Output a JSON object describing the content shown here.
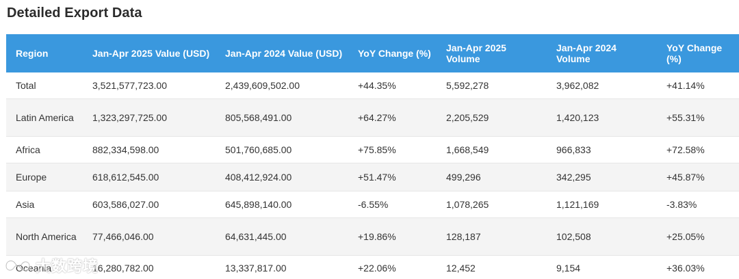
{
  "title": "Detailed Export Data",
  "headers": {
    "region": "Region",
    "value_2025": "Jan-Apr 2025 Value (USD)",
    "value_2024": "Jan-Apr 2024 Value (USD)",
    "yoy_value": "YoY Change (%)",
    "volume_2025": "Jan-Apr 2025 Volume",
    "volume_2024": "Jan-Apr 2024 Volume",
    "yoy_volume": "YoY Change (%)"
  },
  "rows": [
    {
      "region": "Total",
      "value_2025": "3,521,577,723.00",
      "value_2024": "2,439,609,502.00",
      "yoy_value": "+44.35%",
      "volume_2025": "5,592,278",
      "volume_2024": "3,962,082",
      "yoy_volume": "+41.14%"
    },
    {
      "region": "Latin America",
      "value_2025": "1,323,297,725.00",
      "value_2024": "805,568,491.00",
      "yoy_value": "+64.27%",
      "volume_2025": "2,205,529",
      "volume_2024": "1,420,123",
      "yoy_volume": "+55.31%"
    },
    {
      "region": "Africa",
      "value_2025": "882,334,598.00",
      "value_2024": "501,760,685.00",
      "yoy_value": "+75.85%",
      "volume_2025": "1,668,549",
      "volume_2024": "966,833",
      "yoy_volume": "+72.58%"
    },
    {
      "region": "Europe",
      "value_2025": "618,612,545.00",
      "value_2024": "408,412,924.00",
      "yoy_value": "+51.47%",
      "volume_2025": "499,296",
      "volume_2024": "342,295",
      "yoy_volume": "+45.87%"
    },
    {
      "region": "Asia",
      "value_2025": "603,586,027.00",
      "value_2024": "645,898,140.00",
      "yoy_value": "-6.55%",
      "volume_2025": "1,078,265",
      "volume_2024": "1,121,169",
      "yoy_volume": "-3.83%"
    },
    {
      "region": "North America",
      "value_2025": "77,466,046.00",
      "value_2024": "64,631,445.00",
      "yoy_value": "+19.86%",
      "volume_2025": "128,187",
      "volume_2024": "102,508",
      "yoy_volume": "+25.05%"
    },
    {
      "region": "Oceania",
      "value_2025": "16,280,782.00",
      "value_2024": "13,337,817.00",
      "yoy_value": "+22.06%",
      "volume_2025": "12,452",
      "volume_2024": "9,154",
      "yoy_volume": "+36.03%"
    }
  ],
  "colors": {
    "header_bg": "#3a98de",
    "positive": "#2e9e3e",
    "negative": "#d9433b"
  },
  "watermark": {
    "text": "大数跨境",
    "icon": "logo-icon"
  }
}
